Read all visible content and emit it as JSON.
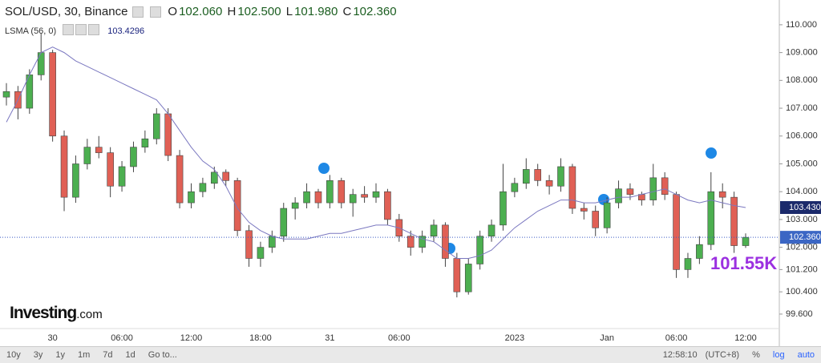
{
  "header": {
    "symbol": "SOL/USD, 30, Binance",
    "ohlc": [
      {
        "k": "O",
        "v": "102.060"
      },
      {
        "k": "H",
        "v": "102.500"
      },
      {
        "k": "L",
        "v": "101.980"
      },
      {
        "k": "C",
        "v": "102.360"
      }
    ],
    "indicator": "LSMA (56, 0)",
    "indicator_value": "103.4296",
    "volume": "101.55K",
    "logo": "Investing",
    "logo_suffix": ".com"
  },
  "footer": {
    "ranges": [
      "10y",
      "3y",
      "1y",
      "1m",
      "7d",
      "1d",
      "Go to..."
    ],
    "time": "12:58:10",
    "tz": "(UTC+8)",
    "options": [
      "%",
      "log",
      "auto"
    ]
  },
  "chart_data": {
    "type": "candlestick",
    "up_color": "#4caf50",
    "down_color": "#e06055",
    "line_color": "#7b78c0",
    "ylim": [
      99.08,
      110.89
    ],
    "yticks": [
      {
        "value": 110,
        "label": "110.000"
      },
      {
        "value": 109,
        "label": "109.000"
      },
      {
        "value": 108,
        "label": "108.000"
      },
      {
        "value": 107,
        "label": "107.000"
      },
      {
        "value": 106,
        "label": "106.000"
      },
      {
        "value": 105,
        "label": "105.000"
      },
      {
        "value": 104,
        "label": "104.000"
      },
      {
        "value": 103,
        "label": "103.000"
      },
      {
        "value": 102,
        "label": "102.000"
      },
      {
        "value": 101.2,
        "label": "101.200"
      },
      {
        "value": 100.4,
        "label": "100.400"
      },
      {
        "value": 99.6,
        "label": "99.600"
      }
    ],
    "categories": [
      null,
      null,
      null,
      null,
      "30",
      null,
      null,
      null,
      null,
      null,
      "06:00",
      null,
      null,
      null,
      null,
      null,
      "12:00",
      null,
      null,
      null,
      null,
      null,
      "18:00",
      null,
      null,
      null,
      null,
      null,
      "31",
      null,
      null,
      null,
      null,
      null,
      "06:00",
      null,
      null,
      null,
      null,
      null,
      null,
      null,
      null,
      null,
      "2023",
      null,
      null,
      null,
      null,
      null,
      null,
      null,
      "Jan",
      null,
      null,
      null,
      null,
      null,
      "06:00",
      null,
      null,
      null,
      null,
      null,
      "12:00"
    ],
    "candles": [
      [
        107.4,
        107.9,
        107.1,
        107.6
      ],
      [
        107.6,
        107.8,
        106.6,
        107.0
      ],
      [
        107.0,
        108.4,
        106.8,
        108.2
      ],
      [
        108.2,
        109.7,
        108.0,
        109.0
      ],
      [
        109.0,
        109.1,
        105.8,
        106.0
      ],
      [
        106.0,
        106.2,
        103.3,
        103.8
      ],
      [
        103.8,
        105.3,
        103.6,
        105.0
      ],
      [
        105.0,
        105.9,
        104.8,
        105.6
      ],
      [
        105.6,
        106.0,
        105.2,
        105.4
      ],
      [
        105.4,
        105.6,
        103.8,
        104.2
      ],
      [
        104.2,
        105.1,
        104.0,
        104.9
      ],
      [
        104.9,
        105.8,
        104.7,
        105.6
      ],
      [
        105.6,
        106.2,
        105.4,
        105.9
      ],
      [
        105.9,
        107.0,
        105.7,
        106.8
      ],
      [
        106.8,
        107.0,
        105.1,
        105.3
      ],
      [
        105.3,
        105.5,
        103.4,
        103.6
      ],
      [
        103.6,
        104.3,
        103.4,
        104.0
      ],
      [
        104.0,
        104.5,
        103.8,
        104.3
      ],
      [
        104.3,
        104.9,
        104.1,
        104.7
      ],
      [
        104.7,
        104.8,
        104.2,
        104.4
      ],
      [
        104.4,
        104.5,
        102.4,
        102.6
      ],
      [
        102.6,
        102.8,
        101.3,
        101.6
      ],
      [
        101.6,
        102.2,
        101.3,
        102.0
      ],
      [
        102.0,
        102.6,
        101.8,
        102.4
      ],
      [
        102.4,
        103.6,
        102.2,
        103.4
      ],
      [
        103.4,
        103.8,
        103.0,
        103.6
      ],
      [
        103.6,
        104.3,
        103.4,
        104.0
      ],
      [
        104.0,
        104.1,
        103.4,
        103.6
      ],
      [
        103.6,
        104.6,
        103.4,
        104.4
      ],
      [
        104.4,
        104.5,
        103.4,
        103.6
      ],
      [
        103.6,
        104.1,
        103.1,
        103.9
      ],
      [
        103.9,
        104.2,
        103.6,
        103.8
      ],
      [
        103.8,
        104.3,
        103.6,
        104.0
      ],
      [
        104.0,
        104.1,
        102.8,
        103.0
      ],
      [
        103.0,
        103.2,
        102.2,
        102.4
      ],
      [
        102.4,
        102.6,
        101.7,
        102.0
      ],
      [
        102.0,
        102.6,
        101.8,
        102.4
      ],
      [
        102.4,
        103.0,
        102.2,
        102.8
      ],
      [
        102.8,
        102.9,
        101.3,
        101.6
      ],
      [
        101.6,
        101.8,
        100.2,
        100.4
      ],
      [
        100.4,
        101.6,
        100.3,
        101.4
      ],
      [
        101.4,
        102.6,
        101.2,
        102.4
      ],
      [
        102.4,
        103.0,
        102.2,
        102.8
      ],
      [
        102.8,
        105.0,
        102.6,
        104.0
      ],
      [
        104.0,
        104.5,
        103.8,
        104.3
      ],
      [
        104.3,
        105.2,
        104.1,
        104.8
      ],
      [
        104.8,
        105.0,
        104.2,
        104.4
      ],
      [
        104.4,
        104.6,
        103.9,
        104.2
      ],
      [
        104.2,
        105.2,
        104.0,
        104.9
      ],
      [
        104.9,
        105.0,
        103.2,
        103.4
      ],
      [
        103.4,
        103.6,
        103.0,
        103.3
      ],
      [
        103.3,
        103.5,
        102.4,
        102.7
      ],
      [
        102.7,
        103.8,
        102.5,
        103.6
      ],
      [
        103.6,
        104.4,
        103.4,
        104.1
      ],
      [
        104.1,
        104.3,
        103.7,
        103.9
      ],
      [
        103.9,
        104.0,
        103.5,
        103.7
      ],
      [
        103.7,
        105.0,
        103.5,
        104.5
      ],
      [
        104.5,
        104.7,
        103.7,
        103.9
      ],
      [
        103.9,
        104.0,
        100.9,
        101.2
      ],
      [
        101.2,
        101.8,
        100.9,
        101.6
      ],
      [
        101.6,
        102.4,
        101.4,
        102.1
      ],
      [
        102.1,
        104.7,
        101.9,
        104.0
      ],
      [
        104.0,
        104.3,
        103.4,
        103.8
      ],
      [
        103.8,
        104.0,
        101.8,
        102.06
      ],
      [
        102.06,
        102.5,
        101.98,
        102.36
      ]
    ],
    "lsma": {
      "name": "LSMA",
      "tag": "103.430",
      "values": [
        106.5,
        107.3,
        108.2,
        109.0,
        109.2,
        109.0,
        108.7,
        108.5,
        108.3,
        108.1,
        107.9,
        107.7,
        107.5,
        107.3,
        106.8,
        106.2,
        105.6,
        105.1,
        104.8,
        104.2,
        103.4,
        102.9,
        102.6,
        102.4,
        102.3,
        102.3,
        102.3,
        102.4,
        102.5,
        102.5,
        102.6,
        102.7,
        102.8,
        102.8,
        102.7,
        102.5,
        102.3,
        102.2,
        101.9,
        101.6,
        101.6,
        101.7,
        101.9,
        102.3,
        102.7,
        103.0,
        103.3,
        103.5,
        103.7,
        103.7,
        103.6,
        103.6,
        103.7,
        103.8,
        103.8,
        103.9,
        104.0,
        104.1,
        103.9,
        103.7,
        103.6,
        103.7,
        103.6,
        103.5,
        103.43
      ]
    },
    "last_tag": "102.360"
  }
}
